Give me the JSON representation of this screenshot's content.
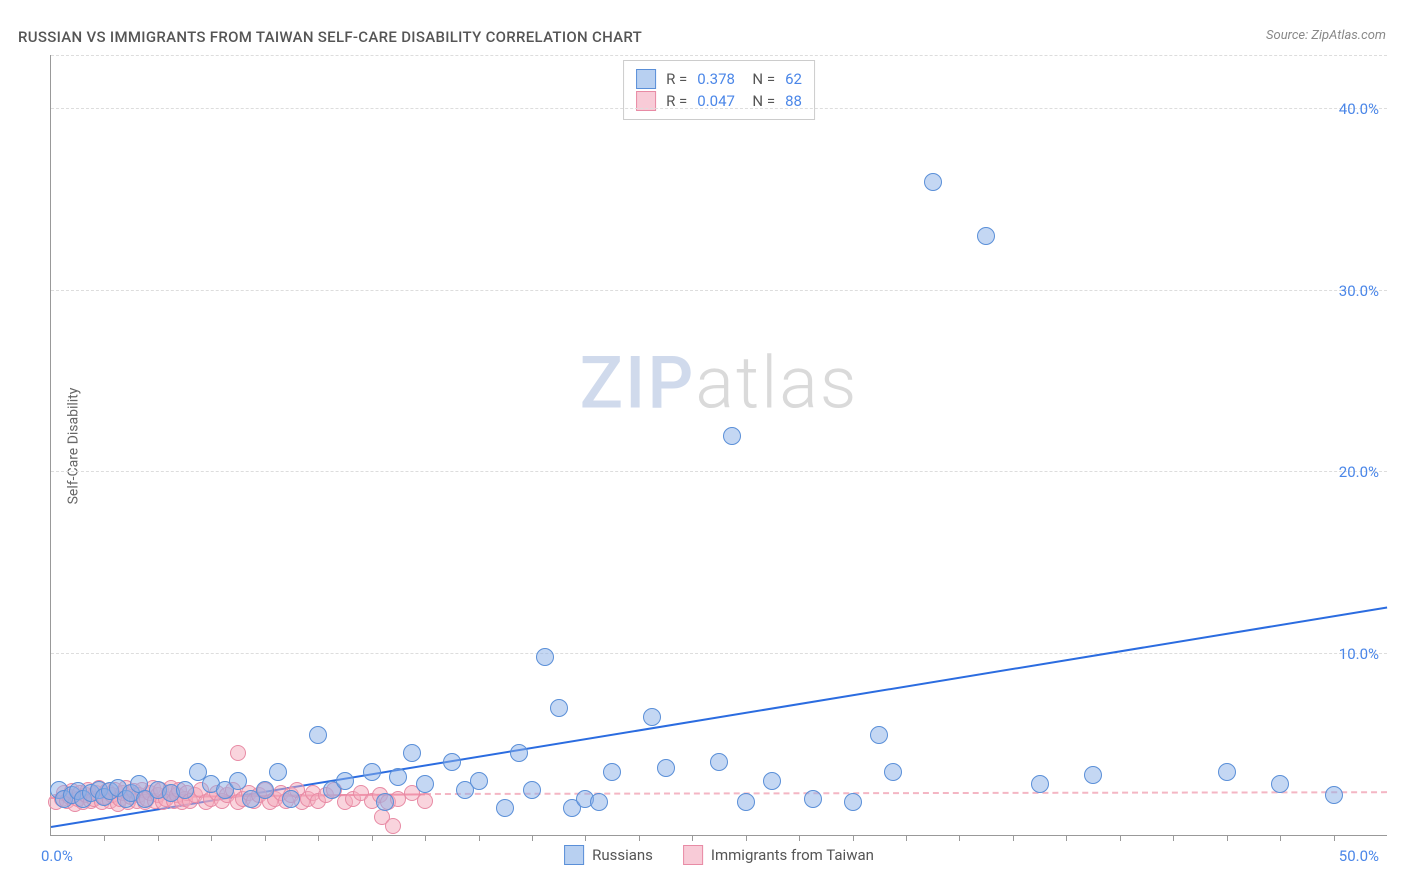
{
  "title": "RUSSIAN VS IMMIGRANTS FROM TAIWAN SELF-CARE DISABILITY CORRELATION CHART",
  "source": "Source: ZipAtlas.com",
  "ylabel": "Self-Care Disability",
  "watermark": {
    "zip": "ZIP",
    "atlas": "atlas"
  },
  "chart": {
    "type": "scatter",
    "xlim": [
      0,
      50
    ],
    "ylim": [
      0,
      43
    ],
    "x_tick_step": 2,
    "y_ticks": [
      10,
      20,
      30,
      40
    ],
    "y_tick_labels": [
      "10.0%",
      "20.0%",
      "30.0%",
      "40.0%"
    ],
    "x_min_label": "0.0%",
    "x_max_label": "50.0%",
    "grid_color": "#dddddd",
    "axis_color": "#999999",
    "background_color": "#ffffff",
    "blue_color": "#89b0e8",
    "blue_border": "#5a8fd8",
    "blue_fill": "rgba(137,176,232,0.5)",
    "pink_color": "#f4a9bc",
    "pink_border": "#e88ba5",
    "pink_fill": "rgba(244,169,188,0.5)",
    "marker_radius_blue": 9,
    "marker_radius_pink": 8,
    "series_blue": {
      "label": "Russians",
      "R": "0.378",
      "N": "62",
      "trend": {
        "x1": 0,
        "y1": 0.4,
        "x2": 50,
        "y2": 12.5,
        "color": "#2b6ce0",
        "width": 2
      },
      "points": [
        [
          0.3,
          2.5
        ],
        [
          0.5,
          2.0
        ],
        [
          0.8,
          2.2
        ],
        [
          1.0,
          2.4
        ],
        [
          1.2,
          2.0
        ],
        [
          1.5,
          2.3
        ],
        [
          1.8,
          2.5
        ],
        [
          2.0,
          2.1
        ],
        [
          2.2,
          2.4
        ],
        [
          2.5,
          2.6
        ],
        [
          2.8,
          2.0
        ],
        [
          3.0,
          2.3
        ],
        [
          3.3,
          2.8
        ],
        [
          3.5,
          2.0
        ],
        [
          4.0,
          2.5
        ],
        [
          4.5,
          2.3
        ],
        [
          5.0,
          2.5
        ],
        [
          5.5,
          3.5
        ],
        [
          6.0,
          2.8
        ],
        [
          6.5,
          2.5
        ],
        [
          7.0,
          3.0
        ],
        [
          7.5,
          2.0
        ],
        [
          8.0,
          2.5
        ],
        [
          8.5,
          3.5
        ],
        [
          9.0,
          2.0
        ],
        [
          10.0,
          5.5
        ],
        [
          10.5,
          2.5
        ],
        [
          11.0,
          3.0
        ],
        [
          12.0,
          3.5
        ],
        [
          12.5,
          1.8
        ],
        [
          13.0,
          3.2
        ],
        [
          13.5,
          4.5
        ],
        [
          14.0,
          2.8
        ],
        [
          15.0,
          4.0
        ],
        [
          15.5,
          2.5
        ],
        [
          16.0,
          3.0
        ],
        [
          17.0,
          1.5
        ],
        [
          17.5,
          4.5
        ],
        [
          18.0,
          2.5
        ],
        [
          18.5,
          9.8
        ],
        [
          19.0,
          7.0
        ],
        [
          19.5,
          1.5
        ],
        [
          20.0,
          2.0
        ],
        [
          20.5,
          1.8
        ],
        [
          21.0,
          3.5
        ],
        [
          22.5,
          6.5
        ],
        [
          23.0,
          3.7
        ],
        [
          25.0,
          4.0
        ],
        [
          25.5,
          22.0
        ],
        [
          26.0,
          1.8
        ],
        [
          27.0,
          3.0
        ],
        [
          28.5,
          2.0
        ],
        [
          30.0,
          1.8
        ],
        [
          31.0,
          5.5
        ],
        [
          31.5,
          3.5
        ],
        [
          33.0,
          36.0
        ],
        [
          35.0,
          33.0
        ],
        [
          37.0,
          2.8
        ],
        [
          39.0,
          3.3
        ],
        [
          44.0,
          3.5
        ],
        [
          46.0,
          2.8
        ],
        [
          48.0,
          2.2
        ]
      ]
    },
    "series_pink": {
      "label": "Immigrants from Taiwan",
      "R": "0.047",
      "N": "88",
      "trend": {
        "solid": {
          "x1": 0,
          "y1": 2.0,
          "x2": 14,
          "y2": 2.2,
          "color": "#ed7f9a",
          "width": 2
        },
        "dashed": {
          "x1": 14,
          "y1": 2.2,
          "x2": 50,
          "y2": 2.3,
          "color": "#f4b6c4",
          "width": 2
        }
      },
      "points": [
        [
          0.2,
          1.8
        ],
        [
          0.4,
          2.0
        ],
        [
          0.5,
          2.3
        ],
        [
          0.6,
          1.9
        ],
        [
          0.7,
          2.1
        ],
        [
          0.8,
          2.4
        ],
        [
          0.9,
          1.7
        ],
        [
          1.0,
          2.0
        ],
        [
          1.1,
          2.3
        ],
        [
          1.2,
          1.8
        ],
        [
          1.3,
          2.2
        ],
        [
          1.4,
          2.5
        ],
        [
          1.5,
          1.9
        ],
        [
          1.6,
          2.0
        ],
        [
          1.7,
          2.3
        ],
        [
          1.8,
          2.6
        ],
        [
          1.9,
          1.8
        ],
        [
          2.0,
          2.1
        ],
        [
          2.1,
          2.4
        ],
        [
          2.2,
          1.9
        ],
        [
          2.3,
          2.2
        ],
        [
          2.4,
          2.5
        ],
        [
          2.5,
          1.7
        ],
        [
          2.6,
          2.0
        ],
        [
          2.7,
          2.3
        ],
        [
          2.8,
          2.6
        ],
        [
          2.9,
          1.8
        ],
        [
          3.0,
          2.1
        ],
        [
          3.1,
          2.4
        ],
        [
          3.2,
          1.9
        ],
        [
          3.3,
          2.2
        ],
        [
          3.4,
          2.5
        ],
        [
          3.5,
          1.8
        ],
        [
          3.6,
          2.0
        ],
        [
          3.7,
          2.3
        ],
        [
          3.8,
          2.6
        ],
        [
          3.9,
          1.9
        ],
        [
          4.0,
          2.2
        ],
        [
          4.1,
          2.5
        ],
        [
          4.2,
          1.8
        ],
        [
          4.3,
          2.0
        ],
        [
          4.4,
          2.3
        ],
        [
          4.5,
          2.6
        ],
        [
          4.6,
          1.9
        ],
        [
          4.7,
          2.2
        ],
        [
          4.8,
          2.5
        ],
        [
          4.9,
          1.8
        ],
        [
          5.0,
          2.0
        ],
        [
          5.1,
          2.3
        ],
        [
          5.2,
          1.9
        ],
        [
          5.4,
          2.2
        ],
        [
          5.6,
          2.5
        ],
        [
          5.8,
          1.8
        ],
        [
          6.0,
          2.0
        ],
        [
          6.2,
          2.3
        ],
        [
          6.4,
          1.9
        ],
        [
          6.6,
          2.2
        ],
        [
          6.8,
          2.5
        ],
        [
          7.0,
          1.8
        ],
        [
          7.0,
          4.5
        ],
        [
          7.2,
          2.0
        ],
        [
          7.4,
          2.3
        ],
        [
          7.6,
          1.9
        ],
        [
          7.8,
          2.2
        ],
        [
          8.0,
          2.5
        ],
        [
          8.2,
          1.8
        ],
        [
          8.4,
          2.0
        ],
        [
          8.6,
          2.3
        ],
        [
          8.8,
          1.9
        ],
        [
          9.0,
          2.2
        ],
        [
          9.2,
          2.5
        ],
        [
          9.4,
          1.8
        ],
        [
          9.6,
          2.0
        ],
        [
          9.8,
          2.3
        ],
        [
          10.0,
          1.9
        ],
        [
          10.3,
          2.2
        ],
        [
          10.6,
          2.5
        ],
        [
          11.0,
          1.8
        ],
        [
          11.3,
          2.0
        ],
        [
          11.6,
          2.3
        ],
        [
          12.0,
          1.9
        ],
        [
          12.3,
          2.2
        ],
        [
          12.4,
          1.0
        ],
        [
          12.6,
          1.8
        ],
        [
          12.8,
          0.5
        ],
        [
          13.0,
          2.0
        ],
        [
          13.5,
          2.3
        ],
        [
          14.0,
          1.9
        ]
      ]
    }
  }
}
